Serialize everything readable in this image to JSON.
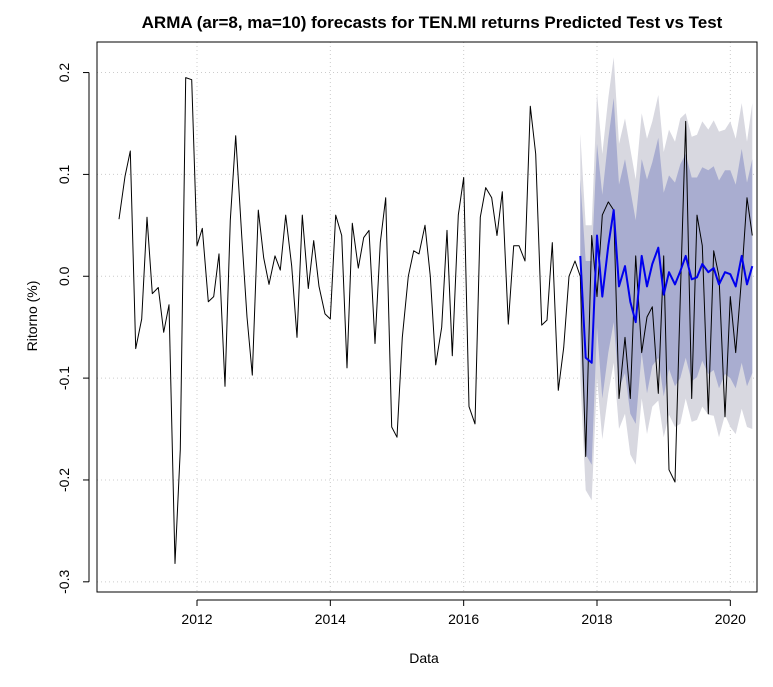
{
  "chart_data": {
    "type": "line",
    "title": "ARMA (ar=8, ma=10) forecasts for TEN.MI returns  Predicted Test vs Test",
    "xlabel": "Data",
    "ylabel": "Ritorno (%)",
    "xlim": [
      2010.5,
      2020.4
    ],
    "ylim": [
      -0.3,
      0.2
    ],
    "x_ticks": [
      2012,
      2014,
      2016,
      2018,
      2020
    ],
    "y_ticks": [
      -0.3,
      -0.2,
      -0.1,
      0.0,
      0.1,
      0.2
    ],
    "x_tick_labels": [
      "2012",
      "2014",
      "2016",
      "2018",
      "2020"
    ],
    "y_tick_labels": [
      "-0.3",
      "-0.2",
      "-0.1",
      "0.0",
      "0.1",
      "0.2"
    ],
    "grid": true,
    "colors": {
      "series": "#000000",
      "forecast": "#0000ee",
      "band80": "#a9add0",
      "band95": "#d8d8e0",
      "grid": "#cccccc"
    },
    "series": [
      {
        "role": "actual",
        "points": [
          [
            2010.83,
            0.056
          ],
          [
            2010.92,
            0.098
          ],
          [
            2011.0,
            0.123
          ],
          [
            2011.08,
            -0.071
          ],
          [
            2011.17,
            -0.042
          ],
          [
            2011.25,
            0.058
          ],
          [
            2011.33,
            -0.017
          ],
          [
            2011.42,
            -0.011
          ],
          [
            2011.5,
            -0.055
          ],
          [
            2011.58,
            -0.028
          ],
          [
            2011.67,
            -0.282
          ],
          [
            2011.75,
            -0.17
          ],
          [
            2011.83,
            0.195
          ],
          [
            2011.92,
            0.193
          ],
          [
            2012.0,
            0.03
          ],
          [
            2012.08,
            0.047
          ],
          [
            2012.17,
            -0.025
          ],
          [
            2012.25,
            -0.02
          ],
          [
            2012.33,
            0.022
          ],
          [
            2012.42,
            -0.108
          ],
          [
            2012.5,
            0.055
          ],
          [
            2012.58,
            0.138
          ],
          [
            2012.67,
            0.04
          ],
          [
            2012.75,
            -0.04
          ],
          [
            2012.83,
            -0.097
          ],
          [
            2012.92,
            0.065
          ],
          [
            2013.0,
            0.018
          ],
          [
            2013.08,
            -0.008
          ],
          [
            2013.17,
            0.02
          ],
          [
            2013.25,
            0.006
          ],
          [
            2013.33,
            0.06
          ],
          [
            2013.42,
            0.01
          ],
          [
            2013.5,
            -0.06
          ],
          [
            2013.58,
            0.06
          ],
          [
            2013.67,
            -0.012
          ],
          [
            2013.75,
            0.035
          ],
          [
            2013.83,
            -0.01
          ],
          [
            2013.92,
            -0.037
          ],
          [
            2014.0,
            -0.042
          ],
          [
            2014.08,
            0.06
          ],
          [
            2014.17,
            0.04
          ],
          [
            2014.25,
            -0.09
          ],
          [
            2014.33,
            0.052
          ],
          [
            2014.42,
            0.008
          ],
          [
            2014.5,
            0.038
          ],
          [
            2014.58,
            0.045
          ],
          [
            2014.67,
            -0.066
          ],
          [
            2014.75,
            0.033
          ],
          [
            2014.83,
            0.077
          ],
          [
            2014.92,
            -0.148
          ],
          [
            2015.0,
            -0.158
          ],
          [
            2015.08,
            -0.06
          ],
          [
            2015.17,
            0.0
          ],
          [
            2015.25,
            0.025
          ],
          [
            2015.33,
            0.022
          ],
          [
            2015.42,
            0.05
          ],
          [
            2015.5,
            0.0
          ],
          [
            2015.58,
            -0.087
          ],
          [
            2015.67,
            -0.05
          ],
          [
            2015.75,
            0.045
          ],
          [
            2015.83,
            -0.078
          ],
          [
            2015.92,
            0.06
          ],
          [
            2016.0,
            0.097
          ],
          [
            2016.08,
            -0.128
          ],
          [
            2016.17,
            -0.145
          ],
          [
            2016.25,
            0.058
          ],
          [
            2016.33,
            0.087
          ],
          [
            2016.42,
            0.077
          ],
          [
            2016.5,
            0.04
          ],
          [
            2016.58,
            0.083
          ],
          [
            2016.67,
            -0.047
          ],
          [
            2016.75,
            0.03
          ],
          [
            2016.83,
            0.03
          ],
          [
            2016.92,
            0.015
          ],
          [
            2017.0,
            0.167
          ],
          [
            2017.08,
            0.12
          ],
          [
            2017.17,
            -0.048
          ],
          [
            2017.25,
            -0.043
          ],
          [
            2017.33,
            0.033
          ],
          [
            2017.42,
            -0.112
          ],
          [
            2017.5,
            -0.07
          ],
          [
            2017.58,
            0.0
          ],
          [
            2017.67,
            0.015
          ],
          [
            2017.75,
            0.0
          ],
          [
            2017.83,
            -0.177
          ],
          [
            2017.92,
            0.04
          ],
          [
            2018.0,
            -0.02
          ],
          [
            2018.08,
            0.06
          ],
          [
            2018.17,
            0.073
          ],
          [
            2018.25,
            0.065
          ],
          [
            2018.33,
            -0.12
          ],
          [
            2018.42,
            -0.06
          ],
          [
            2018.5,
            -0.12
          ],
          [
            2018.58,
            0.02
          ],
          [
            2018.67,
            -0.075
          ],
          [
            2018.75,
            -0.04
          ],
          [
            2018.83,
            -0.03
          ],
          [
            2018.92,
            -0.115
          ],
          [
            2019.0,
            0.02
          ],
          [
            2019.08,
            -0.19
          ],
          [
            2019.17,
            -0.202
          ],
          [
            2019.25,
            -0.02
          ],
          [
            2019.33,
            0.152
          ],
          [
            2019.42,
            -0.12
          ],
          [
            2019.5,
            0.06
          ],
          [
            2019.58,
            0.03
          ],
          [
            2019.67,
            -0.135
          ],
          [
            2019.75,
            0.025
          ],
          [
            2019.83,
            0.0
          ],
          [
            2019.92,
            -0.138
          ],
          [
            2020.0,
            -0.02
          ],
          [
            2020.08,
            -0.075
          ],
          [
            2020.17,
            0.0
          ],
          [
            2020.25,
            0.077
          ],
          [
            2020.33,
            0.04
          ]
        ]
      },
      {
        "role": "forecast",
        "points": [
          [
            2017.75,
            0.02
          ],
          [
            2017.83,
            -0.08
          ],
          [
            2017.92,
            -0.085
          ],
          [
            2018.0,
            0.04
          ],
          [
            2018.08,
            -0.02
          ],
          [
            2018.17,
            0.03
          ],
          [
            2018.25,
            0.065
          ],
          [
            2018.33,
            -0.01
          ],
          [
            2018.42,
            0.01
          ],
          [
            2018.5,
            -0.025
          ],
          [
            2018.58,
            -0.045
          ],
          [
            2018.67,
            0.02
          ],
          [
            2018.75,
            -0.01
          ],
          [
            2018.83,
            0.012
          ],
          [
            2018.92,
            0.028
          ],
          [
            2019.0,
            -0.018
          ],
          [
            2019.08,
            0.004
          ],
          [
            2019.17,
            -0.008
          ],
          [
            2019.25,
            0.005
          ],
          [
            2019.33,
            0.02
          ],
          [
            2019.42,
            -0.003
          ],
          [
            2019.5,
            -0.001
          ],
          [
            2019.58,
            0.012
          ],
          [
            2019.67,
            0.004
          ],
          [
            2019.75,
            0.008
          ],
          [
            2019.83,
            -0.008
          ],
          [
            2019.92,
            0.004
          ],
          [
            2020.0,
            0.002
          ],
          [
            2020.08,
            -0.01
          ],
          [
            2020.17,
            0.02
          ],
          [
            2020.25,
            -0.008
          ],
          [
            2020.33,
            0.01
          ]
        ]
      }
    ],
    "band80_width": [
      0.075,
      0.095,
      0.1,
      0.09,
      0.1,
      0.105,
      0.11,
      0.1,
      0.105,
      0.11,
      0.1,
      0.095,
      0.105,
      0.1,
      0.108,
      0.1,
      0.095,
      0.1,
      0.105,
      0.1,
      0.1,
      0.098,
      0.095,
      0.1,
      0.1,
      0.102,
      0.1,
      0.102,
      0.1,
      0.105,
      0.1,
      0.105
    ],
    "band95_width": [
      0.12,
      0.13,
      0.135,
      0.14,
      0.14,
      0.145,
      0.15,
      0.14,
      0.145,
      0.15,
      0.14,
      0.14,
      0.145,
      0.14,
      0.15,
      0.14,
      0.14,
      0.14,
      0.15,
      0.14,
      0.14,
      0.14,
      0.14,
      0.14,
      0.145,
      0.15,
      0.14,
      0.15,
      0.145,
      0.15,
      0.14,
      0.16
    ]
  }
}
